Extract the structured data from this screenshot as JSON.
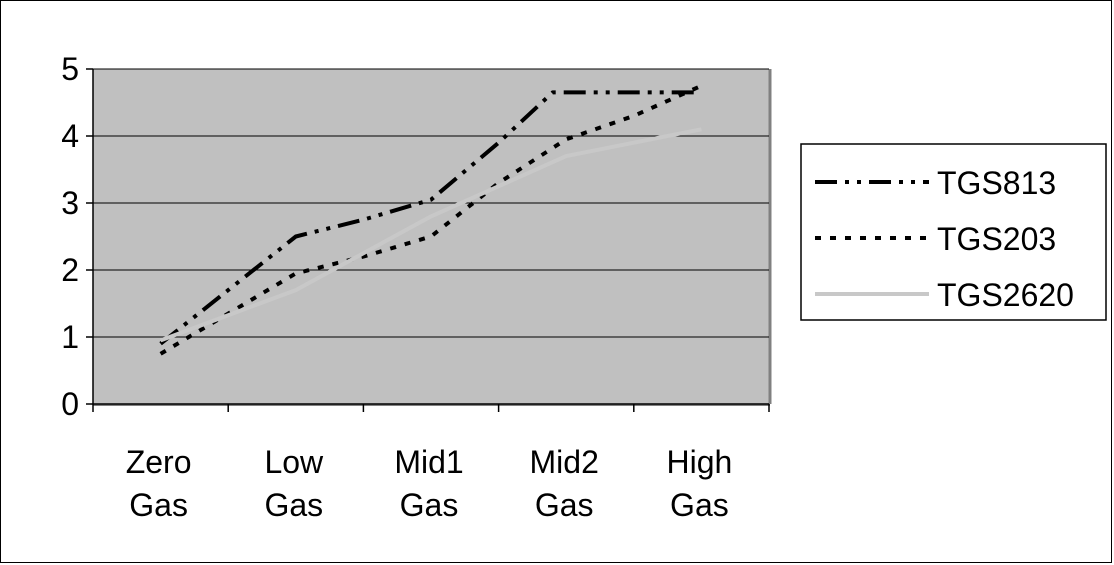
{
  "chart_data": {
    "type": "line",
    "title": "",
    "xlabel": "",
    "ylabel": "",
    "categories": [
      [
        "Zero",
        "Gas"
      ],
      [
        "Low",
        "Gas"
      ],
      [
        "Mid1",
        "Gas"
      ],
      [
        "Mid2",
        "Gas"
      ],
      [
        "High",
        "Gas"
      ]
    ],
    "ylim": [
      0,
      5
    ],
    "yticks": [
      "0",
      "1",
      "2",
      "3",
      "4",
      "5"
    ],
    "grid": true,
    "plot_background": "#c0c0c0",
    "legend_position": "right",
    "series": [
      {
        "name": "TGS813",
        "style": "dash-dot-dot",
        "color": "#000000",
        "points": [
          [
            0,
            0.9
          ],
          [
            0.5,
            1.7
          ],
          [
            1,
            2.5
          ],
          [
            1.5,
            2.75
          ],
          [
            2,
            3.05
          ],
          [
            2.5,
            3.9
          ],
          [
            2.9,
            4.65
          ],
          [
            3,
            4.65
          ],
          [
            4,
            4.65
          ]
        ]
      },
      {
        "name": "TGS203",
        "style": "dotted",
        "color": "#000000",
        "points": [
          [
            0,
            0.75
          ],
          [
            1,
            1.95
          ],
          [
            1.5,
            2.2
          ],
          [
            2,
            2.5
          ],
          [
            2.5,
            3.3
          ],
          [
            3,
            3.95
          ],
          [
            3.5,
            4.3
          ],
          [
            4,
            4.75
          ]
        ]
      },
      {
        "name": "TGS2620",
        "style": "solid",
        "color": "#c8c8c8",
        "points": [
          [
            0,
            0.95
          ],
          [
            1,
            1.7
          ],
          [
            2,
            2.8
          ],
          [
            3,
            3.7
          ],
          [
            4,
            4.1
          ]
        ]
      }
    ]
  }
}
